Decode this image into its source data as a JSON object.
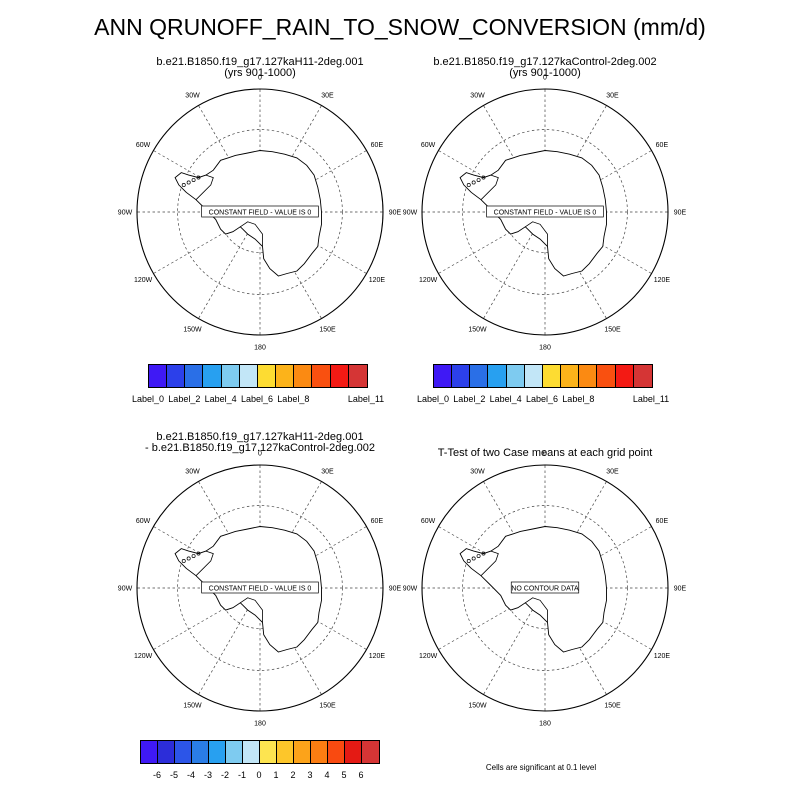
{
  "title": "ANN QRUNOFF_RAIN_TO_SNOW_CONVERSION (mm/d)",
  "lon_labels": [
    "0",
    "30E",
    "60E",
    "90E",
    "120E",
    "150E",
    "180",
    "150W",
    "120W",
    "90W",
    "60W",
    "30W"
  ],
  "panels": [
    {
      "title_line1": "b.e21.B1850.f19_g17.127kaH11-2deg.001",
      "title_line2": "(yrs 901-1000)",
      "field_note": "CONSTANT FIELD - VALUE IS 0"
    },
    {
      "title_line1": "b.e21.B1850.f19_g17.127kaControl-2deg.002",
      "title_line2": "(yrs 901-1000)",
      "field_note": "CONSTANT FIELD - VALUE IS 0"
    },
    {
      "title_line1": "b.e21.B1850.f19_g17.127kaH11-2deg.001",
      "title_line2": " - b.e21.B1850.f19_g17.127kaControl-2deg.002",
      "field_note": "CONSTANT FIELD - VALUE IS 0"
    },
    {
      "title_line1": "T-Test of two Case means at each grid point",
      "title_line2": "",
      "field_note": "NO CONTOUR DATA"
    }
  ],
  "colorbar_cases": {
    "colors": [
      "#3f19f5",
      "#2c40ea",
      "#2a6fe7",
      "#28a0f0",
      "#7ecbf0",
      "#c2e6f7",
      "#fddc32",
      "#fcb31a",
      "#fb8a12",
      "#f95010",
      "#f31a14",
      "#d53535"
    ],
    "labels": [
      "Label_0",
      "Label_2",
      "Label_4",
      "Label_6",
      "Label_8",
      "Label_11"
    ]
  },
  "colorbar_diff": {
    "colors": [
      "#3f19f5",
      "#2c2dd9",
      "#2c55e8",
      "#2a7de6",
      "#28a0f0",
      "#7ecbf0",
      "#c2e6f7",
      "#fde450",
      "#fdc62a",
      "#fca31a",
      "#fb7d12",
      "#f94a10",
      "#e41a14",
      "#d53535"
    ],
    "labels": [
      "-6",
      "-5",
      "-4",
      "-3",
      "-2",
      "-1",
      "0",
      "1",
      "2",
      "3",
      "4",
      "5",
      "6"
    ]
  },
  "significance_note": "Cells are significant at 0.1 level"
}
